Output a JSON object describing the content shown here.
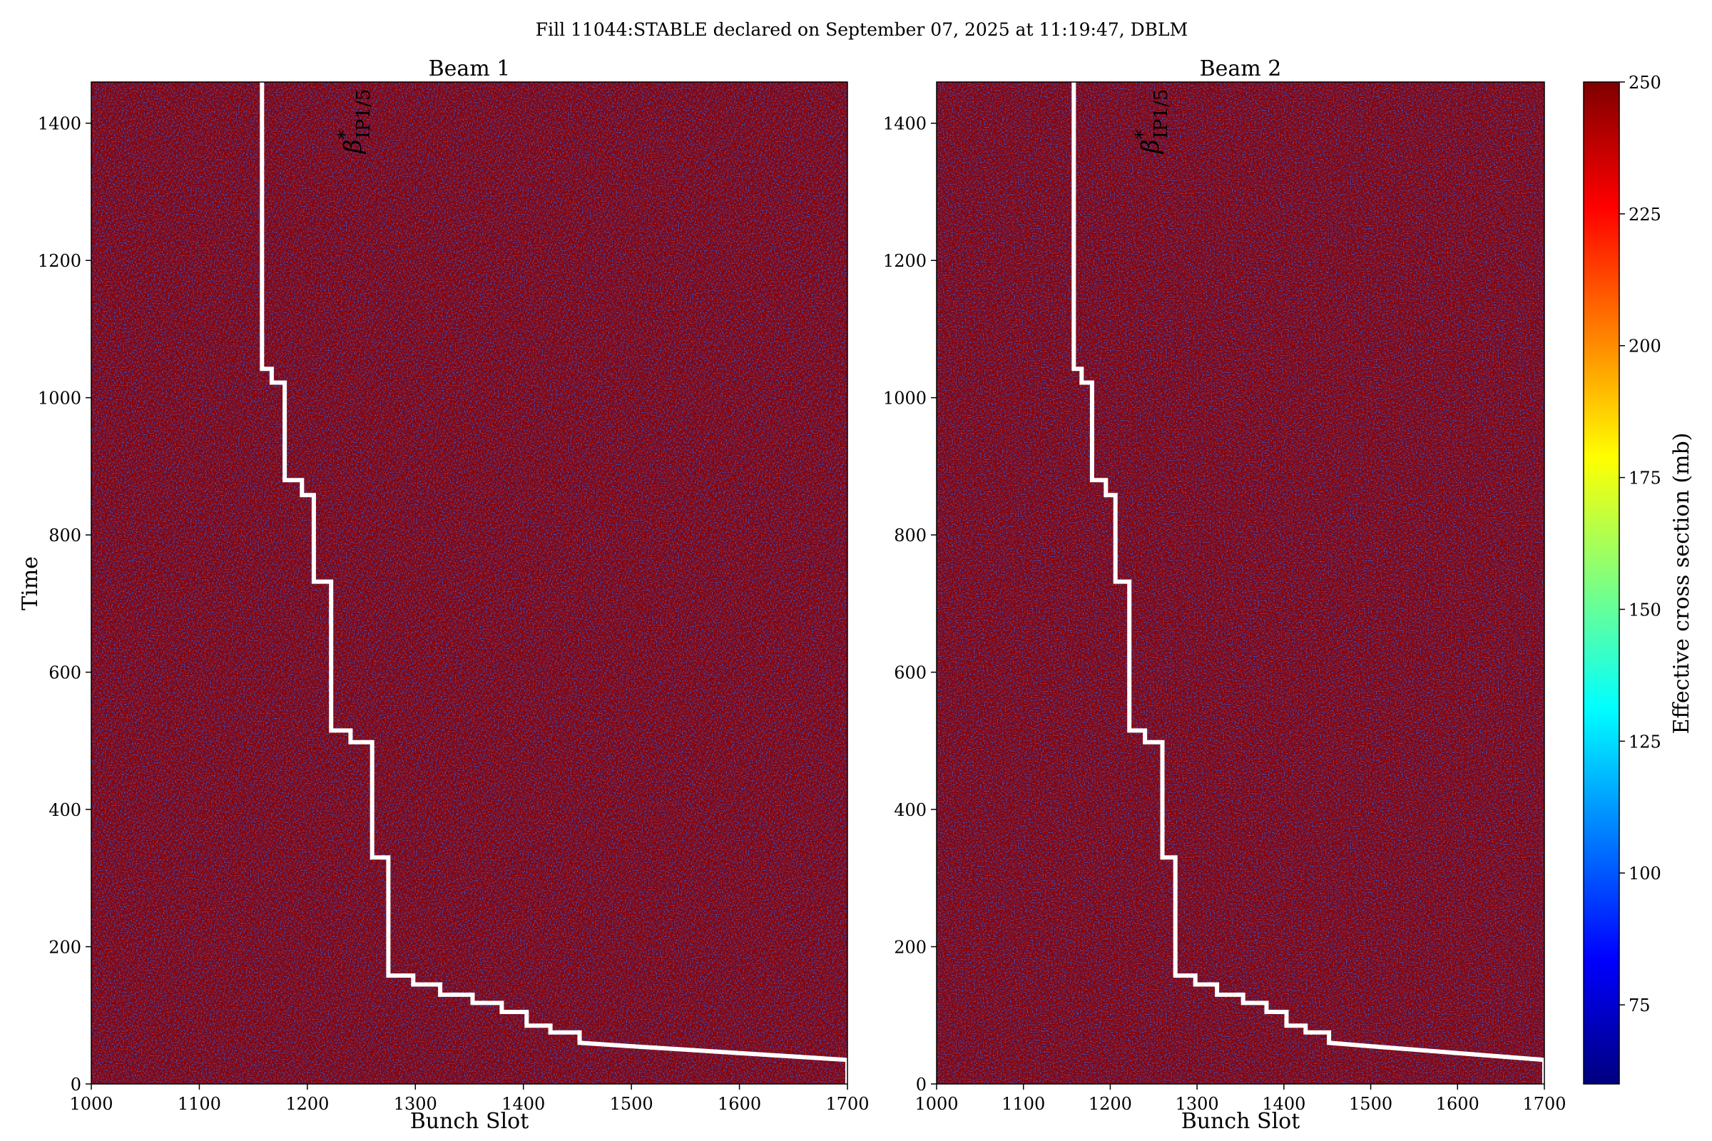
{
  "suptitle": "Fill 11044:STABLE declared on September 07, 2025 at 11:19:47, DBLM",
  "chart_data": [
    {
      "type": "heatmap",
      "title": "Beam 1",
      "xlabel": "Bunch Slot",
      "ylabel": "Time",
      "xlim": [
        1000,
        1700
      ],
      "ylim": [
        0,
        1460
      ],
      "xticks": [
        "1000",
        "1100",
        "1200",
        "1300",
        "1400",
        "1500",
        "1600",
        "1700"
      ],
      "yticks": [
        "0",
        "200",
        "400",
        "600",
        "800",
        "1000",
        "1200",
        "1400"
      ],
      "heatmap_colors": [
        "#8b0000",
        "#0a1a9c"
      ],
      "annotation": "β*IP1/5",
      "annotation_parts": {
        "base": "β",
        "sup": "*",
        "sub": "IP1/5"
      },
      "line_color": "#ffffff",
      "line_series": {
        "name": "",
        "points": [
          [
            1700,
            0
          ],
          [
            1700,
            35
          ],
          [
            1650,
            40
          ],
          [
            1600,
            45
          ],
          [
            1550,
            50
          ],
          [
            1500,
            55
          ],
          [
            1452,
            60
          ],
          [
            1452,
            75
          ],
          [
            1425,
            75
          ],
          [
            1425,
            85
          ],
          [
            1403,
            85
          ],
          [
            1403,
            105
          ],
          [
            1380,
            105
          ],
          [
            1380,
            118
          ],
          [
            1353,
            118
          ],
          [
            1353,
            130
          ],
          [
            1323,
            130
          ],
          [
            1323,
            145
          ],
          [
            1298,
            145
          ],
          [
            1298,
            158
          ],
          [
            1275,
            158
          ],
          [
            1275,
            330
          ],
          [
            1260,
            330
          ],
          [
            1260,
            498
          ],
          [
            1240,
            498
          ],
          [
            1240,
            515
          ],
          [
            1222,
            515
          ],
          [
            1222,
            732
          ],
          [
            1206,
            732
          ],
          [
            1206,
            858
          ],
          [
            1195,
            858
          ],
          [
            1195,
            880
          ],
          [
            1179,
            880
          ],
          [
            1179,
            1022
          ],
          [
            1167,
            1022
          ],
          [
            1167,
            1042
          ],
          [
            1158,
            1042
          ],
          [
            1158,
            1460
          ]
        ]
      }
    },
    {
      "type": "heatmap",
      "title": "Beam 2",
      "xlabel": "Bunch Slot",
      "ylabel": "",
      "xlim": [
        1000,
        1700
      ],
      "ylim": [
        0,
        1460
      ],
      "xticks": [
        "1000",
        "1100",
        "1200",
        "1300",
        "1400",
        "1500",
        "1600",
        "1700"
      ],
      "yticks": [
        "0",
        "200",
        "400",
        "600",
        "800",
        "1000",
        "1200",
        "1400"
      ],
      "heatmap_colors": [
        "#8b0000",
        "#0a1a9c"
      ],
      "annotation": "β*IP1/5",
      "annotation_parts": {
        "base": "β",
        "sup": "*",
        "sub": "IP1/5"
      },
      "line_color": "#ffffff",
      "line_series": {
        "name": "",
        "points": [
          [
            1700,
            0
          ],
          [
            1700,
            35
          ],
          [
            1650,
            40
          ],
          [
            1600,
            45
          ],
          [
            1550,
            50
          ],
          [
            1500,
            55
          ],
          [
            1452,
            60
          ],
          [
            1452,
            75
          ],
          [
            1425,
            75
          ],
          [
            1425,
            85
          ],
          [
            1403,
            85
          ],
          [
            1403,
            105
          ],
          [
            1380,
            105
          ],
          [
            1380,
            118
          ],
          [
            1353,
            118
          ],
          [
            1353,
            130
          ],
          [
            1323,
            130
          ],
          [
            1323,
            145
          ],
          [
            1298,
            145
          ],
          [
            1298,
            158
          ],
          [
            1275,
            158
          ],
          [
            1275,
            330
          ],
          [
            1260,
            330
          ],
          [
            1260,
            498
          ],
          [
            1240,
            498
          ],
          [
            1240,
            515
          ],
          [
            1222,
            515
          ],
          [
            1222,
            732
          ],
          [
            1206,
            732
          ],
          [
            1206,
            858
          ],
          [
            1195,
            858
          ],
          [
            1195,
            880
          ],
          [
            1179,
            880
          ],
          [
            1179,
            1022
          ],
          [
            1167,
            1022
          ],
          [
            1167,
            1042
          ],
          [
            1158,
            1042
          ],
          [
            1158,
            1460
          ]
        ]
      }
    }
  ],
  "colorbar": {
    "label": "Effective cross section (mb)",
    "range": [
      60,
      250
    ],
    "ticks": [
      "75",
      "100",
      "125",
      "150",
      "175",
      "200",
      "225",
      "250"
    ],
    "colormap": [
      "#00007f",
      "#0000ff",
      "#007fff",
      "#00ffff",
      "#7fff7f",
      "#ffff00",
      "#ff7f00",
      "#ff0000",
      "#7f0000"
    ]
  }
}
